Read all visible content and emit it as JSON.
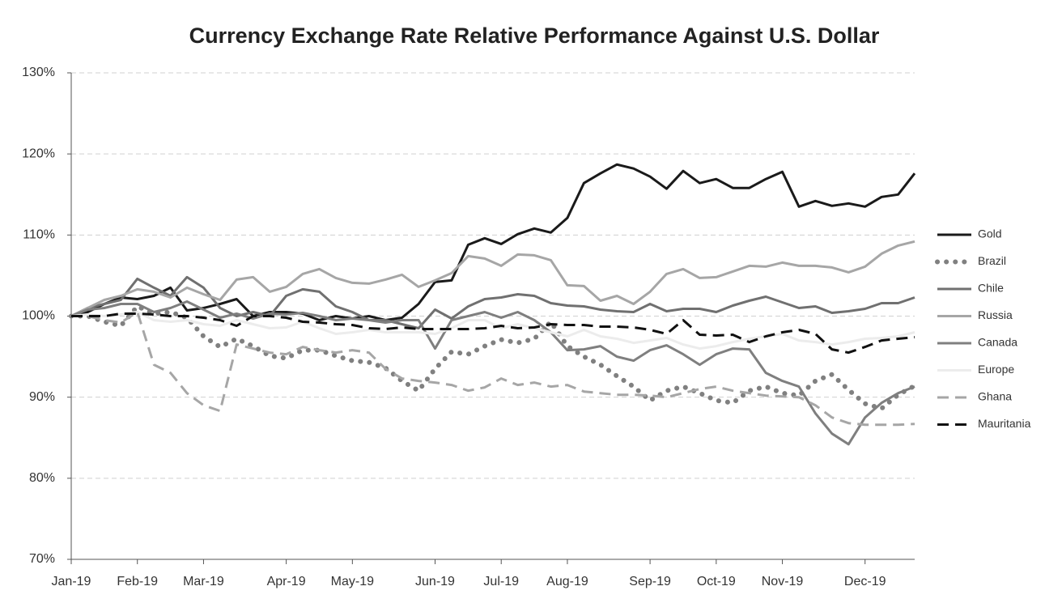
{
  "chart_data": {
    "type": "line",
    "title": "Currency Exchange Rate Relative Performance Against U.S. Dollar",
    "categories": [
      "Jan-19",
      null,
      null,
      null,
      "Feb-19",
      null,
      null,
      null,
      "Mar-19",
      null,
      null,
      null,
      null,
      "Apr-19",
      null,
      null,
      null,
      "May-19",
      null,
      null,
      null,
      null,
      "Jun-19",
      null,
      null,
      null,
      "Jul-19",
      null,
      null,
      null,
      "Aug-19",
      null,
      null,
      null,
      null,
      "Sep-19",
      null,
      null,
      null,
      "Oct-19",
      null,
      null,
      null,
      "Nov-19",
      null,
      null,
      null,
      null,
      "Dec-19",
      null,
      null,
      null
    ],
    "ylim": [
      70,
      130
    ],
    "yticks": [
      {
        "value": 70,
        "label": "70%"
      },
      {
        "value": 80,
        "label": "80%"
      },
      {
        "value": 90,
        "label": "90%"
      },
      {
        "value": 100,
        "label": "100%"
      },
      {
        "value": 110,
        "label": "110%"
      },
      {
        "value": 120,
        "label": "120%"
      },
      {
        "value": 130,
        "label": "130%"
      }
    ],
    "grid": true,
    "legend": "right",
    "series": [
      {
        "name": "Gold",
        "color": "#1a1a1a",
        "style": "solid",
        "values": [
          100,
          100.5,
          101.5,
          102.3,
          102.1,
          102.5,
          103.5,
          100.7,
          101,
          101.5,
          102.1,
          100,
          100.5,
          100.5,
          100.3,
          99.5,
          100,
          99.7,
          100,
          99.5,
          99.8,
          101.5,
          104.2,
          104.4,
          108.8,
          109.6,
          108.9,
          110.1,
          110.8,
          110.3,
          112.1,
          116.4,
          117.6,
          118.7,
          118.2,
          117.2,
          115.7,
          117.9,
          116.4,
          116.9,
          115.8,
          115.8,
          116.9,
          117.8,
          113.5,
          114.2,
          113.6,
          113.9,
          113.5,
          114.7,
          115,
          117.6
        ]
      },
      {
        "name": "Brazil",
        "color": "#808080",
        "style": "dotted",
        "values": [
          100,
          100,
          99.3,
          98.8,
          101.2,
          100.3,
          100.5,
          99.8,
          97.5,
          96.2,
          97.2,
          96.3,
          95.1,
          94.8,
          95.8,
          95.8,
          95.1,
          94.5,
          94.3,
          93.6,
          92,
          90.8,
          93.5,
          95.6,
          95.3,
          96.3,
          97.1,
          96.7,
          97.2,
          99.3,
          96.3,
          95,
          94,
          92.6,
          91.3,
          89.6,
          90.8,
          91.3,
          90.5,
          89.6,
          89.3,
          90.8,
          91.3,
          90.5,
          90.2,
          92,
          92.8,
          90.9,
          89.2,
          88.6,
          90.3,
          91.4
        ]
      },
      {
        "name": "Chile",
        "color": "#707070",
        "style": "solid",
        "values": [
          100,
          101,
          101.5,
          102,
          104.6,
          103.5,
          102.5,
          104.8,
          103.5,
          101,
          100,
          100.5,
          100,
          102.5,
          103.3,
          103,
          101.2,
          100.5,
          99.5,
          99.5,
          99,
          98.5,
          100.8,
          99.7,
          101.2,
          102.1,
          102.3,
          102.7,
          102.5,
          101.6,
          101.3,
          101.2,
          100.8,
          100.6,
          100.5,
          101.5,
          100.6,
          100.9,
          100.9,
          100.5,
          101.3,
          101.9,
          102.4,
          101.7,
          101,
          101.2,
          100.4,
          100.6,
          100.9,
          101.6,
          101.6,
          102.3
        ]
      },
      {
        "name": "Russia",
        "color": "#a6a6a6",
        "style": "solid",
        "values": [
          100,
          101,
          102,
          102.5,
          103.3,
          103,
          102.3,
          103.5,
          102.7,
          102,
          104.5,
          104.8,
          103,
          103.6,
          105.2,
          105.8,
          104.7,
          104.1,
          104,
          104.5,
          105.1,
          103.6,
          104.4,
          105.3,
          107.4,
          107.1,
          106.2,
          107.6,
          107.5,
          106.9,
          103.8,
          103.7,
          101.9,
          102.5,
          101.5,
          103,
          105.2,
          105.8,
          104.7,
          104.8,
          105.5,
          106.2,
          106.1,
          106.6,
          106.2,
          106.2,
          106,
          105.4,
          106.1,
          107.7,
          108.7,
          109.2
        ]
      },
      {
        "name": "Canada",
        "color": "#7f7f7f",
        "style": "solid",
        "values": [
          100,
          100.8,
          101,
          101.5,
          101.5,
          100.5,
          101,
          101.8,
          100.8,
          99.8,
          100.3,
          99.7,
          100.3,
          100.2,
          100.4,
          100,
          99.5,
          99.7,
          99.5,
          99.2,
          99.5,
          99.5,
          96,
          99.5,
          100,
          100.5,
          99.8,
          100.5,
          99.5,
          98,
          95.8,
          95.9,
          96.3,
          95,
          94.5,
          95.8,
          96.4,
          95.3,
          94,
          95.3,
          96,
          95.9,
          93,
          92,
          91.3,
          88,
          85.5,
          84.2,
          87.5,
          89.3,
          90.5,
          91.3
        ]
      },
      {
        "name": "Europe",
        "color": "#ececec",
        "style": "solid",
        "values": [
          100,
          100.2,
          100,
          100.2,
          100.5,
          99.5,
          99.3,
          99.5,
          99,
          98.8,
          99.5,
          99,
          98.5,
          98.6,
          99.3,
          98.5,
          97.8,
          98,
          98.3,
          98,
          98,
          98,
          97.8,
          98.5,
          99.5,
          99.5,
          98.5,
          99,
          98.5,
          98,
          97.5,
          98.3,
          97.5,
          97.2,
          96.7,
          97,
          97.3,
          96.5,
          96,
          96.3,
          96.8,
          97.2,
          97.5,
          97.8,
          97,
          96.8,
          96.5,
          96.8,
          97.2,
          97.3,
          97.5,
          98
        ]
      },
      {
        "name": "Ghana",
        "color": "#a6a6a6",
        "style": "dashed",
        "values": [
          100,
          100,
          99.5,
          99.2,
          100.5,
          94,
          93,
          90.5,
          89,
          88.3,
          96.5,
          96,
          95.5,
          95.3,
          96.2,
          95.8,
          95.5,
          95.8,
          95.5,
          93.5,
          92.3,
          92,
          91.8,
          91.5,
          90.8,
          91.2,
          92.3,
          91.5,
          91.8,
          91.3,
          91.5,
          90.7,
          90.5,
          90.3,
          90.3,
          90.2,
          90,
          90.5,
          91,
          91.3,
          90.8,
          90.5,
          90.2,
          90.1,
          90,
          89,
          87.5,
          86.8,
          86.6,
          86.6,
          86.6,
          86.7
        ]
      },
      {
        "name": "Mauritania",
        "color": "#111111",
        "style": "dashed",
        "values": [
          100,
          100,
          100,
          100.3,
          100.3,
          100.2,
          100,
          100,
          99.8,
          99.5,
          98.8,
          100,
          100,
          99.8,
          99.3,
          99.2,
          99,
          98.9,
          98.5,
          98.4,
          98.6,
          98.4,
          98.4,
          98.4,
          98.4,
          98.5,
          98.8,
          98.5,
          98.6,
          99,
          98.9,
          98.9,
          98.7,
          98.7,
          98.6,
          98.3,
          97.8,
          99.5,
          97.7,
          97.6,
          97.7,
          96.8,
          97.5,
          98,
          98.3,
          97.8,
          95.9,
          95.5,
          96.2,
          97,
          97.2,
          97.4
        ]
      }
    ]
  }
}
